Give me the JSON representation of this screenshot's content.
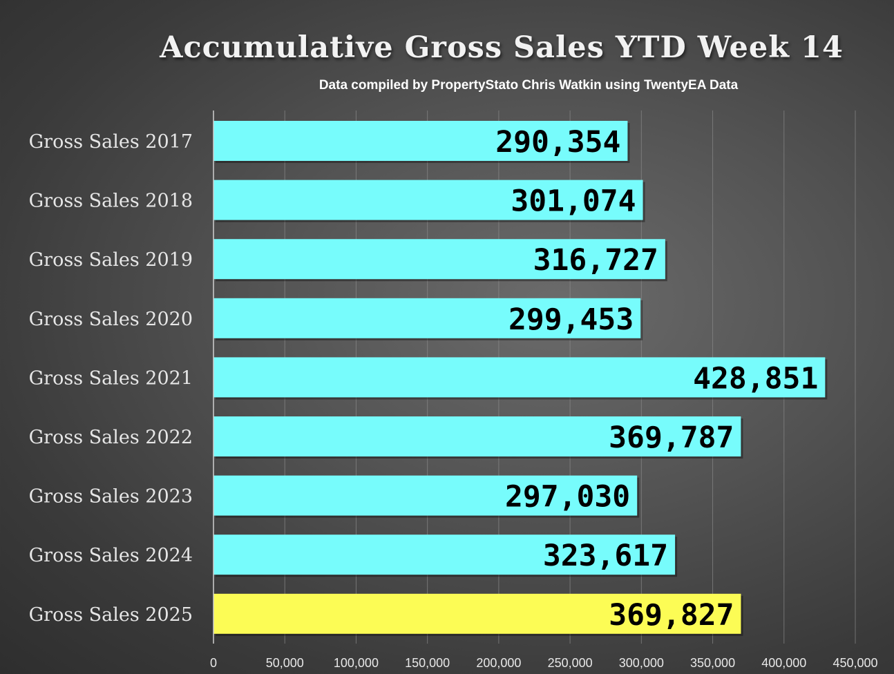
{
  "chart_data": {
    "type": "bar",
    "orientation": "horizontal",
    "title": "Accumulative Gross Sales YTD Week 14",
    "subtitle": "Data compiled by PropertyStato Chris Watkin using TwentyEA Data",
    "categories": [
      "Gross Sales 2017",
      "Gross Sales 2018",
      "Gross Sales 2019",
      "Gross Sales 2020",
      "Gross Sales 2021",
      "Gross Sales 2022",
      "Gross Sales 2023",
      "Gross Sales 2024",
      "Gross Sales 2025"
    ],
    "values": [
      290354,
      301074,
      316727,
      299453,
      428851,
      369787,
      297030,
      323617,
      369827
    ],
    "value_labels": [
      "290,354",
      "301,074",
      "316,727",
      "299,453",
      "428,851",
      "369,787",
      "297,030",
      "323,617",
      "369,827"
    ],
    "colors": [
      "#77fcfc",
      "#77fcfc",
      "#77fcfc",
      "#77fcfc",
      "#77fcfc",
      "#77fcfc",
      "#77fcfc",
      "#77fcfc",
      "#fcfc55"
    ],
    "xlim": [
      0,
      450000
    ],
    "xticks": [
      0,
      50000,
      100000,
      150000,
      200000,
      250000,
      300000,
      350000,
      400000,
      450000
    ],
    "xtick_labels": [
      "0",
      "50,000",
      "100,000",
      "150,000",
      "200,000",
      "250,000",
      "300,000",
      "350,000",
      "400,000",
      "450,000"
    ],
    "xlabel": "",
    "ylabel": "",
    "grid": true,
    "legend": "none"
  }
}
